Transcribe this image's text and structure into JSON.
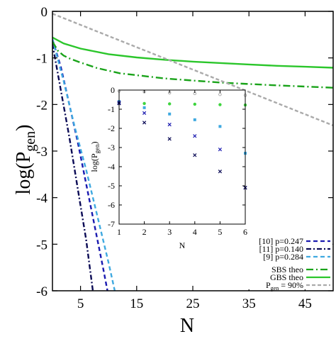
{
  "chart_data": [
    {
      "type": "line",
      "xlabel": "N",
      "ylabel_main": "log(P",
      "ylabel_sub": "gen",
      "ylabel_close": ")",
      "xlim": [
        0,
        50
      ],
      "ylim": [
        -6,
        0
      ],
      "xticks": [
        5,
        15,
        25,
        35,
        45
      ],
      "yticks": [
        0,
        -1,
        -2,
        -3,
        -4,
        -5,
        -6
      ],
      "series": [
        {
          "name": "[10] p=0.247",
          "color": "#1a1ab0",
          "dash": "6,4",
          "x": [
            0,
            1.5,
            3,
            4.5,
            6,
            7.5,
            9,
            9.8
          ],
          "y": [
            -0.6,
            -1.2,
            -2.0,
            -2.8,
            -3.7,
            -4.6,
            -5.5,
            -6.0
          ]
        },
        {
          "name": "[11] p=0.140",
          "color": "#0a0a55",
          "dash": "7,3,2,3",
          "x": [
            0,
            1.5,
            3,
            4.5,
            6,
            7.2
          ],
          "y": [
            -0.7,
            -1.7,
            -2.7,
            -3.8,
            -4.9,
            -6.0
          ]
        },
        {
          "name": "[9] p=0.284",
          "color": "#3fa9e0",
          "dash": "6,4",
          "x": [
            0,
            2,
            4,
            6,
            8,
            10,
            11.1
          ],
          "y": [
            -0.6,
            -1.5,
            -2.5,
            -3.4,
            -4.4,
            -5.4,
            -6.0
          ]
        },
        {
          "name": "SBS theo",
          "color": "#1aa31a",
          "dash": "10,4,2,4",
          "x": [
            0,
            1,
            2,
            3,
            5,
            8,
            12,
            20,
            30,
            40,
            50
          ],
          "y": [
            -0.65,
            -0.85,
            -0.95,
            -1.01,
            -1.1,
            -1.22,
            -1.33,
            -1.44,
            -1.53,
            -1.59,
            -1.64
          ]
        },
        {
          "name": "GBS theo",
          "color": "#2bc62b",
          "dash": "",
          "x": [
            0,
            2,
            5,
            10,
            15,
            20,
            25,
            30,
            35,
            40,
            45,
            50
          ],
          "y": [
            -0.56,
            -0.69,
            -0.8,
            -0.92,
            -0.99,
            -1.04,
            -1.08,
            -1.11,
            -1.14,
            -1.17,
            -1.19,
            -1.21
          ]
        },
        {
          "name": "P",
          "name_sub": "gen",
          "name_suffix": " = 90%",
          "color": "#aaaaaa",
          "dash": "5,3",
          "x": [
            0,
            50
          ],
          "y": [
            -0.05,
            -2.45
          ]
        }
      ]
    },
    {
      "type": "scatter",
      "xlabel": "N",
      "ylabel_main": "log(P",
      "ylabel_sub": "gen",
      "ylabel_close": ")",
      "xlim": [
        1,
        6
      ],
      "ylim": [
        -7,
        0
      ],
      "xticks": [
        1,
        2,
        3,
        4,
        5,
        6
      ],
      "yticks": [
        0,
        -1,
        -2,
        -3,
        -4,
        -5,
        -6,
        -7
      ],
      "series": [
        {
          "marker": "circle",
          "color": "#999999",
          "x": [
            1,
            2,
            3,
            4,
            5,
            6
          ],
          "y": [
            -0.05,
            -0.09,
            -0.14,
            -0.18,
            -0.23,
            -0.27
          ]
        },
        {
          "marker": "dot",
          "color": "#3ed43e",
          "x": [
            1,
            2,
            3,
            4,
            5,
            6
          ],
          "y": [
            -0.6,
            -0.7,
            -0.72,
            -0.74,
            -0.76,
            -0.78
          ]
        },
        {
          "marker": "square",
          "color": "#3fa9e0",
          "x": [
            1,
            2,
            3,
            4,
            5,
            6
          ],
          "y": [
            -0.6,
            -0.92,
            -1.25,
            -1.55,
            -1.9,
            -3.3
          ]
        },
        {
          "marker": "cross",
          "color": "#1a1ab0",
          "x": [
            1,
            2,
            3,
            4,
            5,
            6
          ],
          "y": [
            -0.65,
            -1.2,
            -1.8,
            -2.4,
            -3.1,
            -5.1
          ]
        },
        {
          "marker": "cross",
          "color": "#0a0a55",
          "x": [
            1,
            2,
            3,
            4,
            5,
            6
          ],
          "y": [
            -0.7,
            -1.7,
            -2.55,
            -3.4,
            -4.25,
            -5.1
          ]
        }
      ]
    }
  ]
}
